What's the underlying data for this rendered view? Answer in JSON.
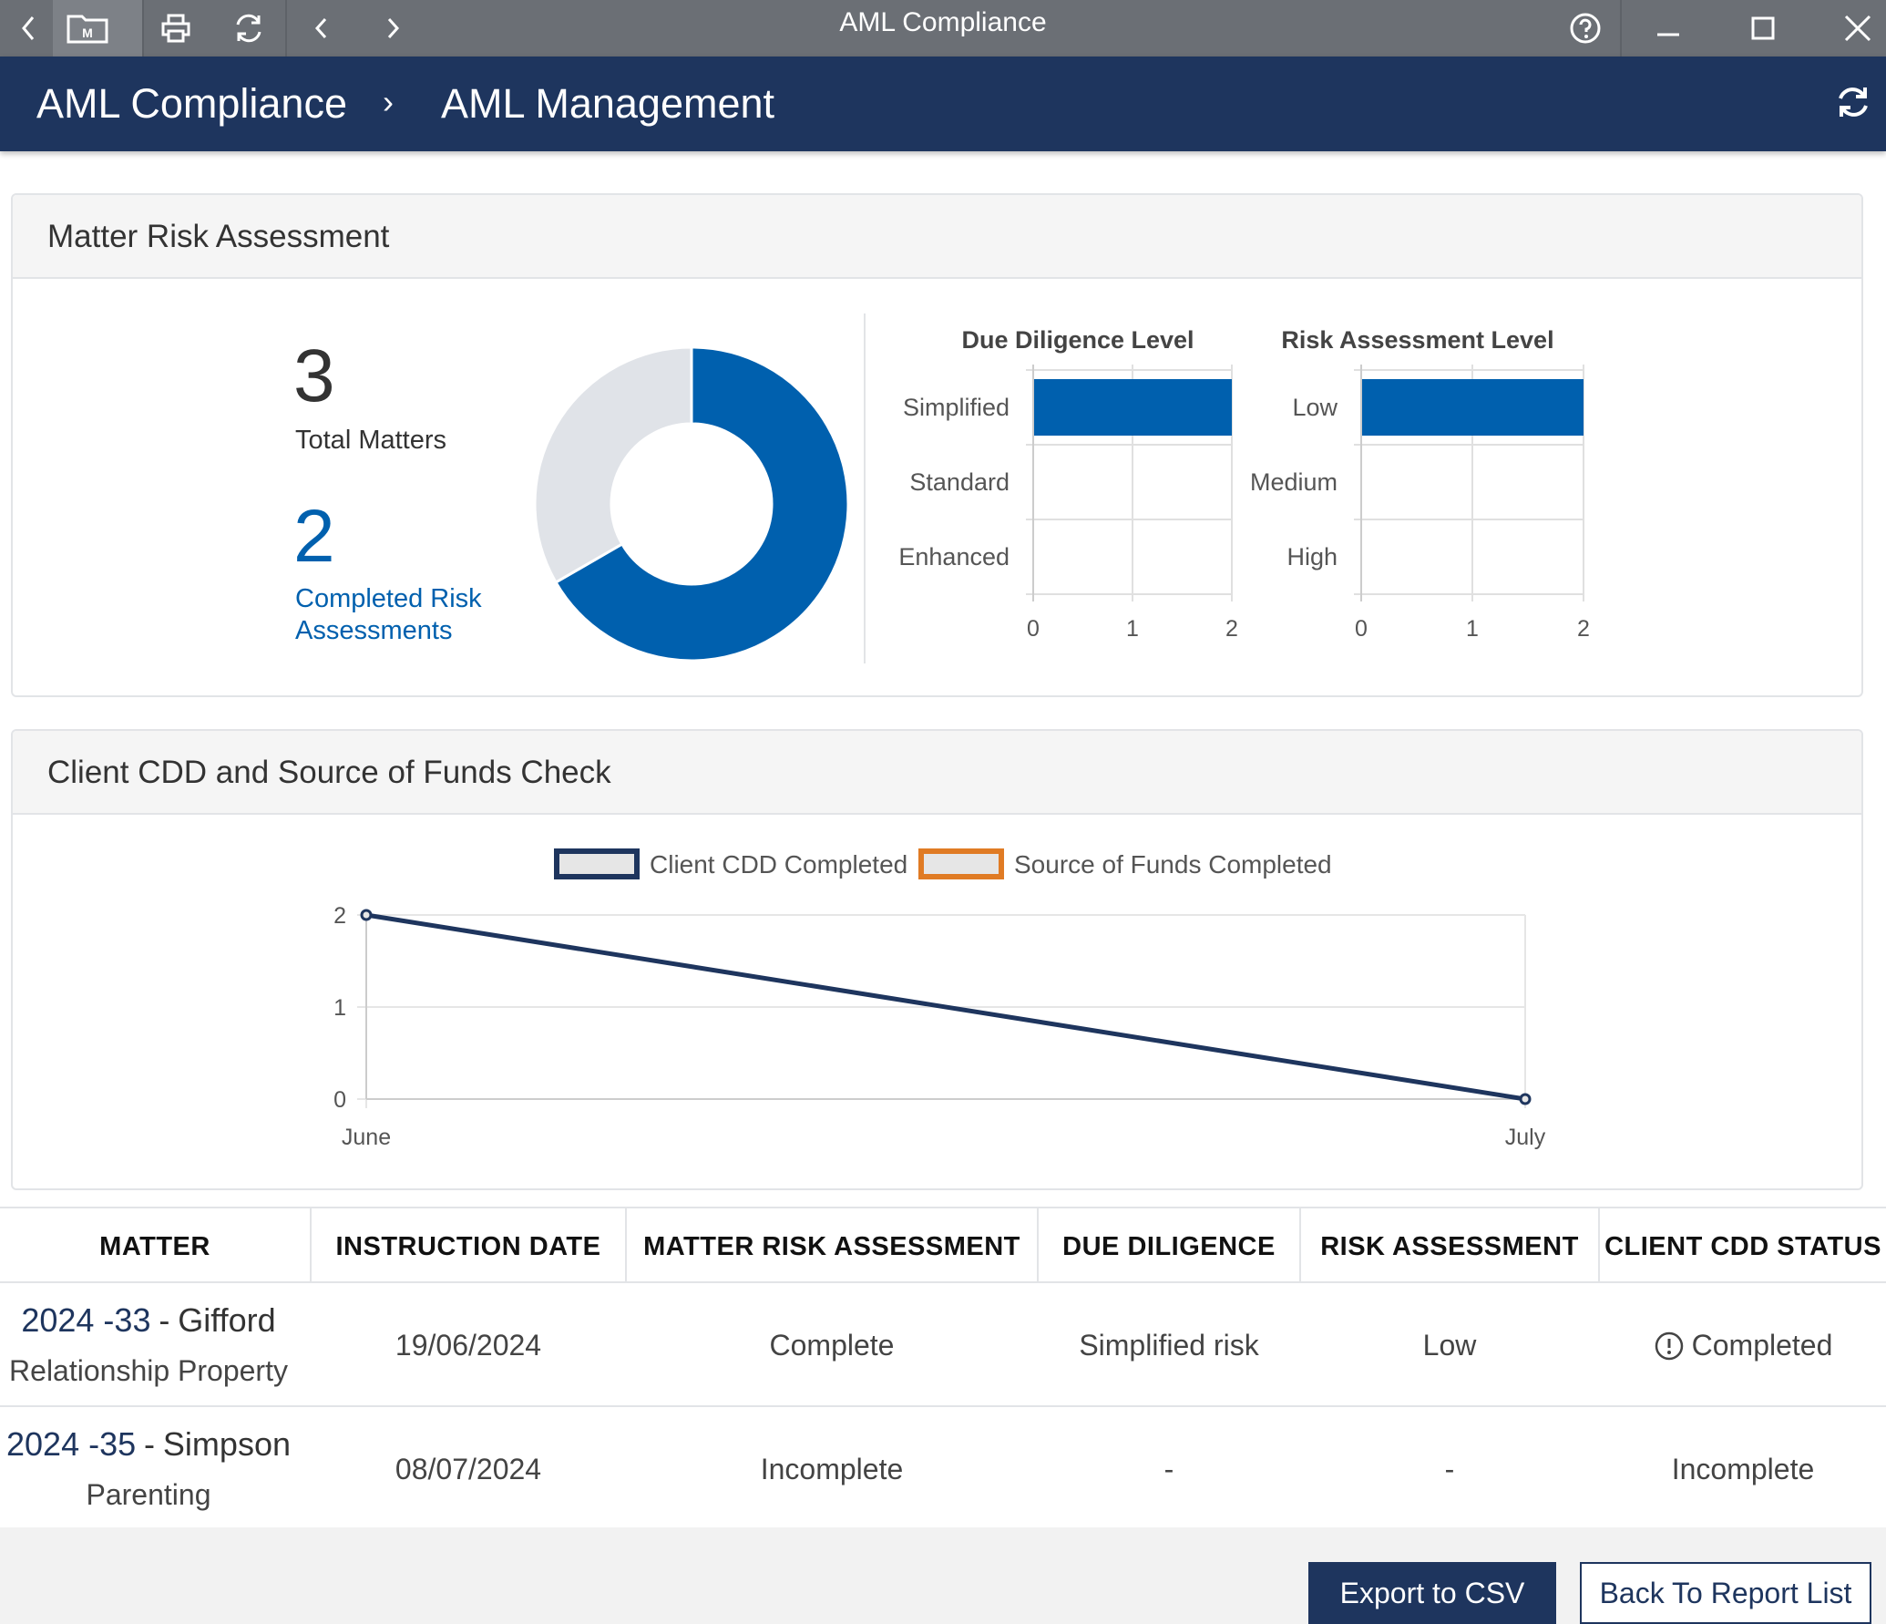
{
  "window": {
    "title": "AML Compliance",
    "icons": [
      "back-icon",
      "matter-folder-icon",
      "print-icon",
      "refresh-icon",
      "nav-prev-icon",
      "nav-next-icon",
      "help-icon",
      "minimize-icon",
      "maximize-icon",
      "close-icon"
    ]
  },
  "header": {
    "breadcrumb_root": "AML Compliance",
    "breadcrumb_separator": "›",
    "breadcrumb_current": "AML Management"
  },
  "risk_card": {
    "title": "Matter Risk Assessment",
    "total_matters_value": "3",
    "total_matters_label": "Total Matters",
    "completed_value": "2",
    "completed_label_line1": "Completed Risk",
    "completed_label_line2": "Assessments"
  },
  "cdd_card": {
    "title": "Client CDD and Source of Funds Check"
  },
  "chart_data": [
    {
      "type": "pie",
      "variant": "donut",
      "values": [
        2,
        1
      ],
      "colors": [
        "#0060ae",
        "#e0e3e8"
      ]
    },
    {
      "type": "bar",
      "orientation": "horizontal",
      "title": "Due Diligence Level",
      "categories": [
        "Simplified",
        "Standard",
        "Enhanced"
      ],
      "values": [
        2,
        0,
        0
      ],
      "xlim": [
        0,
        2
      ],
      "xticks": [
        "0",
        "1",
        "2"
      ],
      "color": "#0060ae",
      "grid": true
    },
    {
      "type": "bar",
      "orientation": "horizontal",
      "title": "Risk Assessment Level",
      "categories": [
        "Low",
        "Medium",
        "High"
      ],
      "values": [
        2,
        0,
        0
      ],
      "xlim": [
        0,
        2
      ],
      "xticks": [
        "0",
        "1",
        "2"
      ],
      "color": "#0060ae",
      "grid": true
    },
    {
      "type": "line",
      "x": [
        "June",
        "July"
      ],
      "series": [
        {
          "name": "Client CDD Completed",
          "values": [
            2,
            0
          ],
          "color": "#1e355e"
        },
        {
          "name": "Source of Funds Completed",
          "values": [
            null,
            null
          ],
          "color": "#e07b24"
        }
      ],
      "ylim": [
        0,
        2
      ],
      "yticks": [
        "0",
        "1",
        "2"
      ],
      "legend": "top",
      "grid": true
    }
  ],
  "table": {
    "headers": [
      "MATTER",
      "INSTRUCTION DATE",
      "MATTER RISK ASSESSMENT",
      "DUE DILIGENCE",
      "RISK ASSESSMENT",
      "CLIENT CDD STATUS"
    ],
    "rows": [
      {
        "matter_id": "2024 -33",
        "matter_dash": "-",
        "client": "Gifford",
        "matter_type": "Relationship Property",
        "instruction_date": "19/06/2024",
        "matter_risk_assessment": "Complete",
        "due_diligence": "Simplified risk",
        "risk_assessment": "Low",
        "client_cdd_status": "Completed",
        "status_icon": "alert-circle-icon"
      },
      {
        "matter_id": "2024 -35",
        "matter_dash": "-",
        "client": "Simpson",
        "matter_type": "Parenting",
        "instruction_date": "08/07/2024",
        "matter_risk_assessment": "Incomplete",
        "due_diligence": "-",
        "risk_assessment": "-",
        "client_cdd_status": "Incomplete"
      }
    ]
  },
  "footer": {
    "export_label": "Export to CSV",
    "back_label": "Back To Report List"
  }
}
